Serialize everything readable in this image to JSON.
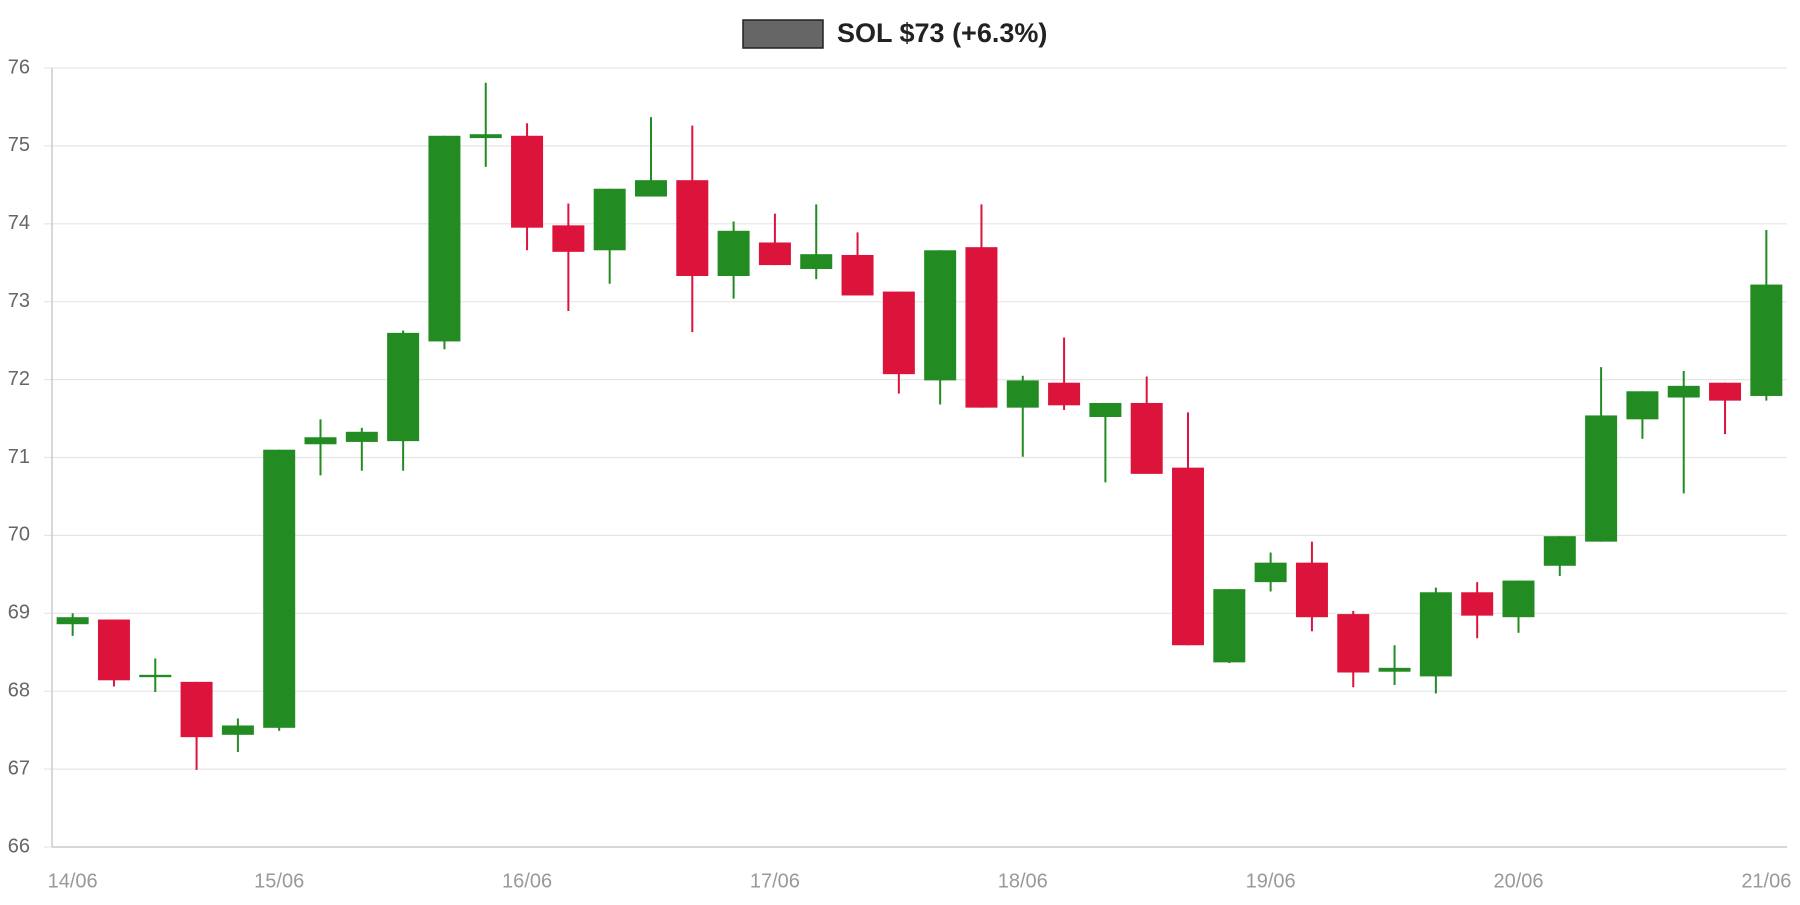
{
  "chart_data": {
    "type": "candlestick",
    "categories": [
      "14/06",
      null,
      null,
      null,
      null,
      "15/06",
      null,
      null,
      null,
      null,
      null,
      "16/06",
      null,
      null,
      null,
      null,
      null,
      "17/06",
      null,
      null,
      null,
      null,
      null,
      "18/06",
      null,
      null,
      null,
      null,
      null,
      "19/06",
      null,
      null,
      null,
      null,
      null,
      "20/06",
      null,
      null,
      null,
      null,
      null,
      "21/06"
    ],
    "series": [
      {
        "name": "SOL $73 (+6.3%)",
        "color": "#666666",
        "up_color": "#228b22",
        "down_color": "#dc143c",
        "open": [
          68.86,
          68.92,
          68.18,
          68.12,
          67.44,
          67.53,
          71.17,
          71.2,
          71.21,
          72.49,
          75.1,
          75.13,
          73.98,
          73.66,
          74.35,
          74.56,
          73.33,
          73.76,
          73.42,
          73.6,
          73.13,
          71.99,
          73.7,
          71.64,
          71.96,
          71.52,
          71.7,
          70.87,
          68.37,
          69.4,
          69.65,
          68.99,
          68.25,
          68.19,
          69.27,
          68.95,
          69.61,
          69.92,
          71.49,
          71.77,
          71.96,
          71.79
        ],
        "high": [
          69.0,
          68.92,
          68.42,
          68.12,
          67.65,
          71.1,
          71.49,
          71.38,
          72.63,
          75.13,
          75.81,
          75.29,
          74.26,
          74.45,
          75.37,
          75.26,
          74.03,
          74.13,
          74.25,
          73.89,
          73.13,
          73.66,
          74.25,
          72.05,
          72.54,
          71.7,
          72.04,
          71.58,
          69.31,
          69.78,
          69.92,
          69.03,
          68.59,
          69.33,
          69.4,
          69.42,
          69.99,
          72.16,
          71.85,
          72.11,
          71.96,
          73.92
        ],
        "low": [
          68.71,
          68.06,
          67.99,
          66.99,
          67.22,
          67.49,
          70.77,
          70.83,
          70.83,
          72.39,
          74.73,
          73.66,
          72.88,
          73.23,
          74.35,
          72.61,
          73.04,
          73.47,
          73.29,
          73.08,
          71.82,
          71.68,
          71.64,
          71.01,
          71.61,
          70.68,
          70.79,
          68.59,
          68.36,
          69.28,
          68.77,
          68.05,
          68.08,
          67.97,
          68.68,
          68.75,
          69.48,
          69.92,
          71.24,
          70.54,
          71.3,
          71.73
        ],
        "close": [
          68.95,
          68.14,
          68.21,
          67.41,
          67.56,
          71.1,
          71.26,
          71.33,
          72.6,
          75.13,
          75.15,
          73.95,
          73.64,
          74.45,
          74.56,
          73.33,
          73.91,
          73.47,
          73.61,
          73.08,
          72.07,
          73.66,
          71.64,
          71.99,
          71.67,
          71.7,
          70.79,
          68.59,
          69.31,
          69.65,
          68.95,
          68.24,
          68.3,
          69.27,
          68.97,
          69.42,
          69.99,
          71.54,
          71.85,
          71.92,
          71.73,
          73.22
        ]
      }
    ],
    "ylim": [
      66,
      76
    ],
    "yticks": [
      66,
      67,
      68,
      69,
      70,
      71,
      72,
      73,
      74,
      75,
      76
    ],
    "grid": true
  }
}
